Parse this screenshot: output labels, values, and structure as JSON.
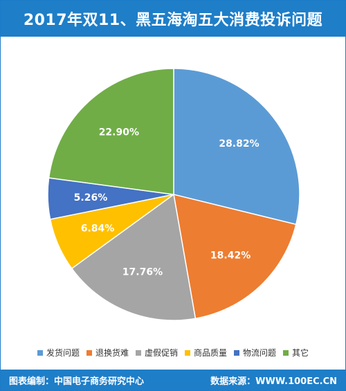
{
  "page": {
    "title": "2017年双11、黑五海淘五大消费投诉问题",
    "footer_left": "图表编制：中国电子商务研究中心",
    "footer_right": "数据来源：WWW.100EC.CN",
    "colors": {
      "header_bg": "#1e7ec8",
      "header_text": "#ffffff"
    }
  },
  "chart_data": {
    "type": "pie",
    "title": "2017年双11、黑五海淘五大消费投诉问题",
    "legend_position": "bottom",
    "slices": [
      {
        "label": "发货问题",
        "value": 28.82,
        "display": "28.82%",
        "color": "#5b9bd5"
      },
      {
        "label": "退换货难",
        "value": 18.42,
        "display": "18.42%",
        "color": "#ed7d31"
      },
      {
        "label": "虚假促销",
        "value": 17.76,
        "display": "17.76%",
        "color": "#a5a5a5"
      },
      {
        "label": "商品质量",
        "value": 6.84,
        "display": "6.84%",
        "color": "#ffc000"
      },
      {
        "label": "物流问题",
        "value": 5.26,
        "display": "5.26%",
        "color": "#4472c4"
      },
      {
        "label": "其它",
        "value": 22.9,
        "display": "22.90%",
        "color": "#70ad47"
      }
    ]
  }
}
